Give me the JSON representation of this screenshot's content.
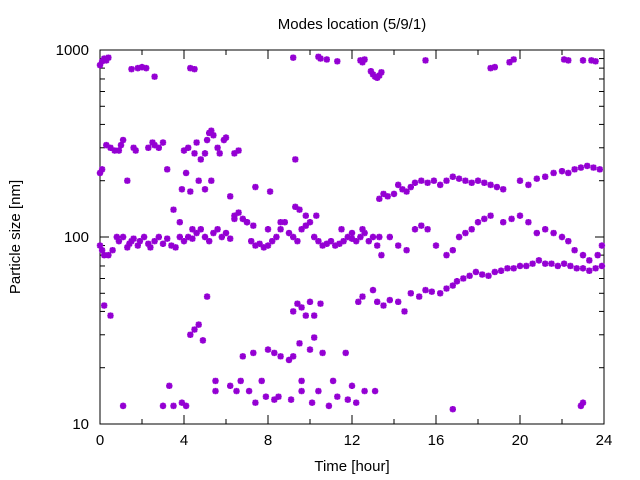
{
  "chart_data": {
    "type": "scatter",
    "title": "Modes location (5/9/1)",
    "xlabel": "Time [hour]",
    "ylabel": "Particle size [nm]",
    "xlim": [
      0,
      24
    ],
    "ylim": [
      10,
      1000
    ],
    "yscale": "log",
    "grid": false,
    "legend": "none",
    "marker": "asterisk",
    "colors": {
      "points": "#9400d3",
      "axis": "#000000",
      "background": "#ffffff"
    },
    "x_ticks": [
      "0",
      "4",
      "8",
      "12",
      "16",
      "20",
      "24"
    ],
    "y_ticks": [
      "10",
      "100",
      "1000"
    ],
    "series": [
      {
        "points": [
          [
            0.0,
            830
          ],
          [
            0.1,
            870
          ],
          [
            0.2,
            900
          ],
          [
            0.3,
            880
          ],
          [
            0.4,
            910
          ],
          [
            1.5,
            790
          ],
          [
            1.8,
            800
          ],
          [
            2.0,
            810
          ],
          [
            2.2,
            800
          ],
          [
            2.6,
            720
          ],
          [
            4.3,
            800
          ],
          [
            4.5,
            790
          ],
          [
            9.2,
            910
          ],
          [
            10.4,
            920
          ],
          [
            10.5,
            900
          ],
          [
            10.8,
            890
          ],
          [
            11.3,
            870
          ],
          [
            12.4,
            880
          ],
          [
            12.5,
            860
          ],
          [
            12.6,
            890
          ],
          [
            12.9,
            770
          ],
          [
            13.0,
            740
          ],
          [
            13.1,
            720
          ],
          [
            13.2,
            710
          ],
          [
            13.3,
            730
          ],
          [
            13.4,
            760
          ],
          [
            15.5,
            880
          ],
          [
            18.6,
            800
          ],
          [
            18.8,
            810
          ],
          [
            19.5,
            860
          ],
          [
            19.7,
            890
          ],
          [
            22.1,
            890
          ],
          [
            22.3,
            880
          ],
          [
            23.0,
            880
          ],
          [
            23.4,
            880
          ],
          [
            23.6,
            870
          ],
          [
            0.0,
            220
          ],
          [
            0.1,
            230
          ],
          [
            0.3,
            310
          ],
          [
            0.5,
            300
          ],
          [
            0.7,
            290
          ],
          [
            0.9,
            290
          ],
          [
            1.0,
            310
          ],
          [
            1.1,
            330
          ],
          [
            1.3,
            200
          ],
          [
            1.6,
            300
          ],
          [
            1.7,
            290
          ],
          [
            2.3,
            300
          ],
          [
            2.5,
            320
          ],
          [
            2.6,
            310
          ],
          [
            2.8,
            300
          ],
          [
            3.0,
            320
          ],
          [
            3.2,
            230
          ],
          [
            4.0,
            290
          ],
          [
            4.1,
            220
          ],
          [
            4.2,
            300
          ],
          [
            4.5,
            280
          ],
          [
            4.6,
            320
          ],
          [
            4.8,
            260
          ],
          [
            5.0,
            280
          ],
          [
            5.1,
            330
          ],
          [
            5.2,
            360
          ],
          [
            5.3,
            370
          ],
          [
            5.4,
            350
          ],
          [
            5.6,
            300
          ],
          [
            5.7,
            280
          ],
          [
            5.9,
            330
          ],
          [
            6.0,
            340
          ],
          [
            6.4,
            280
          ],
          [
            6.6,
            290
          ],
          [
            9.3,
            260
          ],
          [
            7.4,
            185
          ],
          [
            8.1,
            175
          ],
          [
            3.9,
            180
          ],
          [
            4.3,
            175
          ],
          [
            4.7,
            200
          ],
          [
            5.0,
            180
          ],
          [
            5.3,
            200
          ],
          [
            6.2,
            165
          ],
          [
            0.0,
            90
          ],
          [
            0.1,
            85
          ],
          [
            0.2,
            80
          ],
          [
            0.4,
            80
          ],
          [
            0.6,
            85
          ],
          [
            0.8,
            100
          ],
          [
            0.9,
            95
          ],
          [
            1.1,
            100
          ],
          [
            1.3,
            88
          ],
          [
            1.4,
            92
          ],
          [
            1.5,
            95
          ],
          [
            1.6,
            98
          ],
          [
            1.8,
            90
          ],
          [
            1.9,
            95
          ],
          [
            2.1,
            100
          ],
          [
            2.3,
            92
          ],
          [
            2.4,
            88
          ],
          [
            2.6,
            95
          ],
          [
            2.8,
            100
          ],
          [
            3.0,
            92
          ],
          [
            3.2,
            98
          ],
          [
            3.4,
            90
          ],
          [
            3.6,
            88
          ],
          [
            3.8,
            100
          ],
          [
            4.0,
            95
          ],
          [
            4.2,
            100
          ],
          [
            4.4,
            98
          ],
          [
            4.6,
            105
          ],
          [
            4.8,
            110
          ],
          [
            5.0,
            100
          ],
          [
            5.2,
            95
          ],
          [
            5.4,
            105
          ],
          [
            5.6,
            110
          ],
          [
            5.8,
            100
          ],
          [
            6.0,
            105
          ],
          [
            6.2,
            98
          ],
          [
            6.4,
            130
          ],
          [
            6.6,
            135
          ],
          [
            6.8,
            125
          ],
          [
            7.0,
            120
          ],
          [
            7.2,
            95
          ],
          [
            7.4,
            90
          ],
          [
            7.6,
            92
          ],
          [
            7.8,
            88
          ],
          [
            8.0,
            90
          ],
          [
            8.2,
            95
          ],
          [
            8.4,
            100
          ],
          [
            8.6,
            110
          ],
          [
            8.8,
            120
          ],
          [
            9.0,
            105
          ],
          [
            9.2,
            100
          ],
          [
            9.4,
            95
          ],
          [
            9.6,
            110
          ],
          [
            9.8,
            115
          ],
          [
            10.0,
            120
          ],
          [
            10.2,
            100
          ],
          [
            10.4,
            95
          ],
          [
            10.6,
            90
          ],
          [
            10.8,
            92
          ],
          [
            11.0,
            95
          ],
          [
            11.2,
            90
          ],
          [
            11.4,
            92
          ],
          [
            11.6,
            95
          ],
          [
            11.8,
            100
          ],
          [
            12.0,
            98
          ],
          [
            12.2,
            95
          ],
          [
            12.4,
            100
          ],
          [
            12.6,
            105
          ],
          [
            12.8,
            95
          ],
          [
            13.0,
            100
          ],
          [
            13.2,
            90
          ],
          [
            3.5,
            140
          ],
          [
            3.8,
            120
          ],
          [
            4.4,
            110
          ],
          [
            6.4,
            125
          ],
          [
            7.0,
            120
          ],
          [
            7.3,
            115
          ],
          [
            8.0,
            110
          ],
          [
            8.6,
            120
          ],
          [
            9.3,
            145
          ],
          [
            9.5,
            140
          ],
          [
            9.8,
            130
          ],
          [
            10.3,
            130
          ],
          [
            11.5,
            110
          ],
          [
            12.0,
            105
          ],
          [
            12.5,
            110
          ],
          [
            13.3,
            160
          ],
          [
            13.5,
            170
          ],
          [
            13.7,
            165
          ],
          [
            14.0,
            170
          ],
          [
            14.2,
            190
          ],
          [
            14.4,
            180
          ],
          [
            14.6,
            175
          ],
          [
            14.8,
            185
          ],
          [
            15.0,
            195
          ],
          [
            15.3,
            200
          ],
          [
            15.6,
            195
          ],
          [
            15.9,
            200
          ],
          [
            16.2,
            190
          ],
          [
            16.5,
            200
          ],
          [
            16.8,
            210
          ],
          [
            17.1,
            205
          ],
          [
            17.4,
            200
          ],
          [
            17.7,
            195
          ],
          [
            18.0,
            200
          ],
          [
            18.3,
            195
          ],
          [
            18.6,
            190
          ],
          [
            18.9,
            185
          ],
          [
            19.2,
            180
          ],
          [
            20.0,
            200
          ],
          [
            20.4,
            190
          ],
          [
            20.8,
            205
          ],
          [
            21.2,
            210
          ],
          [
            21.6,
            220
          ],
          [
            22.0,
            225
          ],
          [
            22.3,
            220
          ],
          [
            22.6,
            230
          ],
          [
            22.9,
            235
          ],
          [
            23.2,
            240
          ],
          [
            23.5,
            235
          ],
          [
            23.8,
            230
          ],
          [
            13.3,
            100
          ],
          [
            13.4,
            80
          ],
          [
            13.8,
            100
          ],
          [
            14.2,
            90
          ],
          [
            14.6,
            85
          ],
          [
            15.0,
            110
          ],
          [
            15.3,
            115
          ],
          [
            15.6,
            110
          ],
          [
            16.0,
            90
          ],
          [
            16.5,
            80
          ],
          [
            16.8,
            85
          ],
          [
            17.1,
            100
          ],
          [
            17.4,
            105
          ],
          [
            17.7,
            110
          ],
          [
            18.0,
            120
          ],
          [
            18.3,
            125
          ],
          [
            18.6,
            130
          ],
          [
            19.2,
            120
          ],
          [
            19.6,
            125
          ],
          [
            20.0,
            130
          ],
          [
            20.4,
            120
          ],
          [
            20.8,
            105
          ],
          [
            21.2,
            110
          ],
          [
            21.6,
            105
          ],
          [
            22.0,
            100
          ],
          [
            22.3,
            95
          ],
          [
            22.6,
            85
          ],
          [
            23.0,
            80
          ],
          [
            23.3,
            75
          ],
          [
            23.7,
            80
          ],
          [
            23.9,
            90
          ],
          [
            13.2,
            45
          ],
          [
            13.5,
            43
          ],
          [
            13.8,
            46
          ],
          [
            14.2,
            45
          ],
          [
            14.5,
            40
          ],
          [
            14.8,
            50
          ],
          [
            15.2,
            48
          ],
          [
            15.5,
            52
          ],
          [
            15.8,
            51
          ],
          [
            16.2,
            50
          ],
          [
            16.5,
            53
          ],
          [
            16.8,
            55
          ],
          [
            17.0,
            58
          ],
          [
            17.3,
            60
          ],
          [
            17.6,
            62
          ],
          [
            17.9,
            65
          ],
          [
            18.2,
            63
          ],
          [
            18.5,
            62
          ],
          [
            18.8,
            65
          ],
          [
            19.1,
            66
          ],
          [
            19.4,
            68
          ],
          [
            19.7,
            68
          ],
          [
            20.0,
            70
          ],
          [
            20.3,
            70
          ],
          [
            20.6,
            72
          ],
          [
            20.9,
            75
          ],
          [
            21.2,
            72
          ],
          [
            21.5,
            72
          ],
          [
            21.8,
            70
          ],
          [
            22.1,
            72
          ],
          [
            22.4,
            70
          ],
          [
            22.7,
            68
          ],
          [
            23.0,
            68
          ],
          [
            23.3,
            66
          ],
          [
            23.6,
            68
          ],
          [
            23.9,
            70
          ],
          [
            12.3,
            45
          ],
          [
            12.5,
            48
          ],
          [
            13.0,
            52
          ],
          [
            0.2,
            43
          ],
          [
            0.5,
            38
          ],
          [
            4.3,
            30
          ],
          [
            4.5,
            32
          ],
          [
            4.7,
            34
          ],
          [
            4.9,
            28
          ],
          [
            5.1,
            48
          ],
          [
            9.2,
            40
          ],
          [
            9.4,
            44
          ],
          [
            9.6,
            42
          ],
          [
            9.8,
            38
          ],
          [
            10.0,
            45
          ],
          [
            10.2,
            38
          ],
          [
            10.5,
            44
          ],
          [
            9.5,
            27
          ],
          [
            10.2,
            29
          ],
          [
            5.5,
            17
          ],
          [
            6.7,
            17
          ],
          [
            6.8,
            23
          ],
          [
            7.3,
            24
          ],
          [
            7.7,
            17
          ],
          [
            8.0,
            25
          ],
          [
            8.3,
            24
          ],
          [
            8.6,
            23
          ],
          [
            9.0,
            22
          ],
          [
            9.2,
            23
          ],
          [
            9.6,
            17
          ],
          [
            10.0,
            25
          ],
          [
            10.6,
            24
          ],
          [
            11.1,
            17
          ],
          [
            11.7,
            24
          ],
          [
            12.0,
            16
          ],
          [
            1.1,
            12.5
          ],
          [
            3.0,
            12.5
          ],
          [
            3.3,
            16
          ],
          [
            3.5,
            12.5
          ],
          [
            3.9,
            13
          ],
          [
            4.1,
            12.5
          ],
          [
            5.5,
            15
          ],
          [
            6.2,
            16
          ],
          [
            6.5,
            15
          ],
          [
            7.1,
            15
          ],
          [
            7.4,
            13
          ],
          [
            7.9,
            14
          ],
          [
            8.3,
            13.5
          ],
          [
            8.5,
            14
          ],
          [
            9.1,
            13.5
          ],
          [
            9.6,
            15
          ],
          [
            10.1,
            13
          ],
          [
            10.4,
            15
          ],
          [
            10.9,
            12.5
          ],
          [
            11.3,
            14
          ],
          [
            11.8,
            13.5
          ],
          [
            12.2,
            13
          ],
          [
            12.6,
            15
          ],
          [
            13.1,
            15
          ],
          [
            16.8,
            12
          ],
          [
            22.9,
            12.5
          ],
          [
            23.0,
            13
          ]
        ]
      }
    ]
  }
}
